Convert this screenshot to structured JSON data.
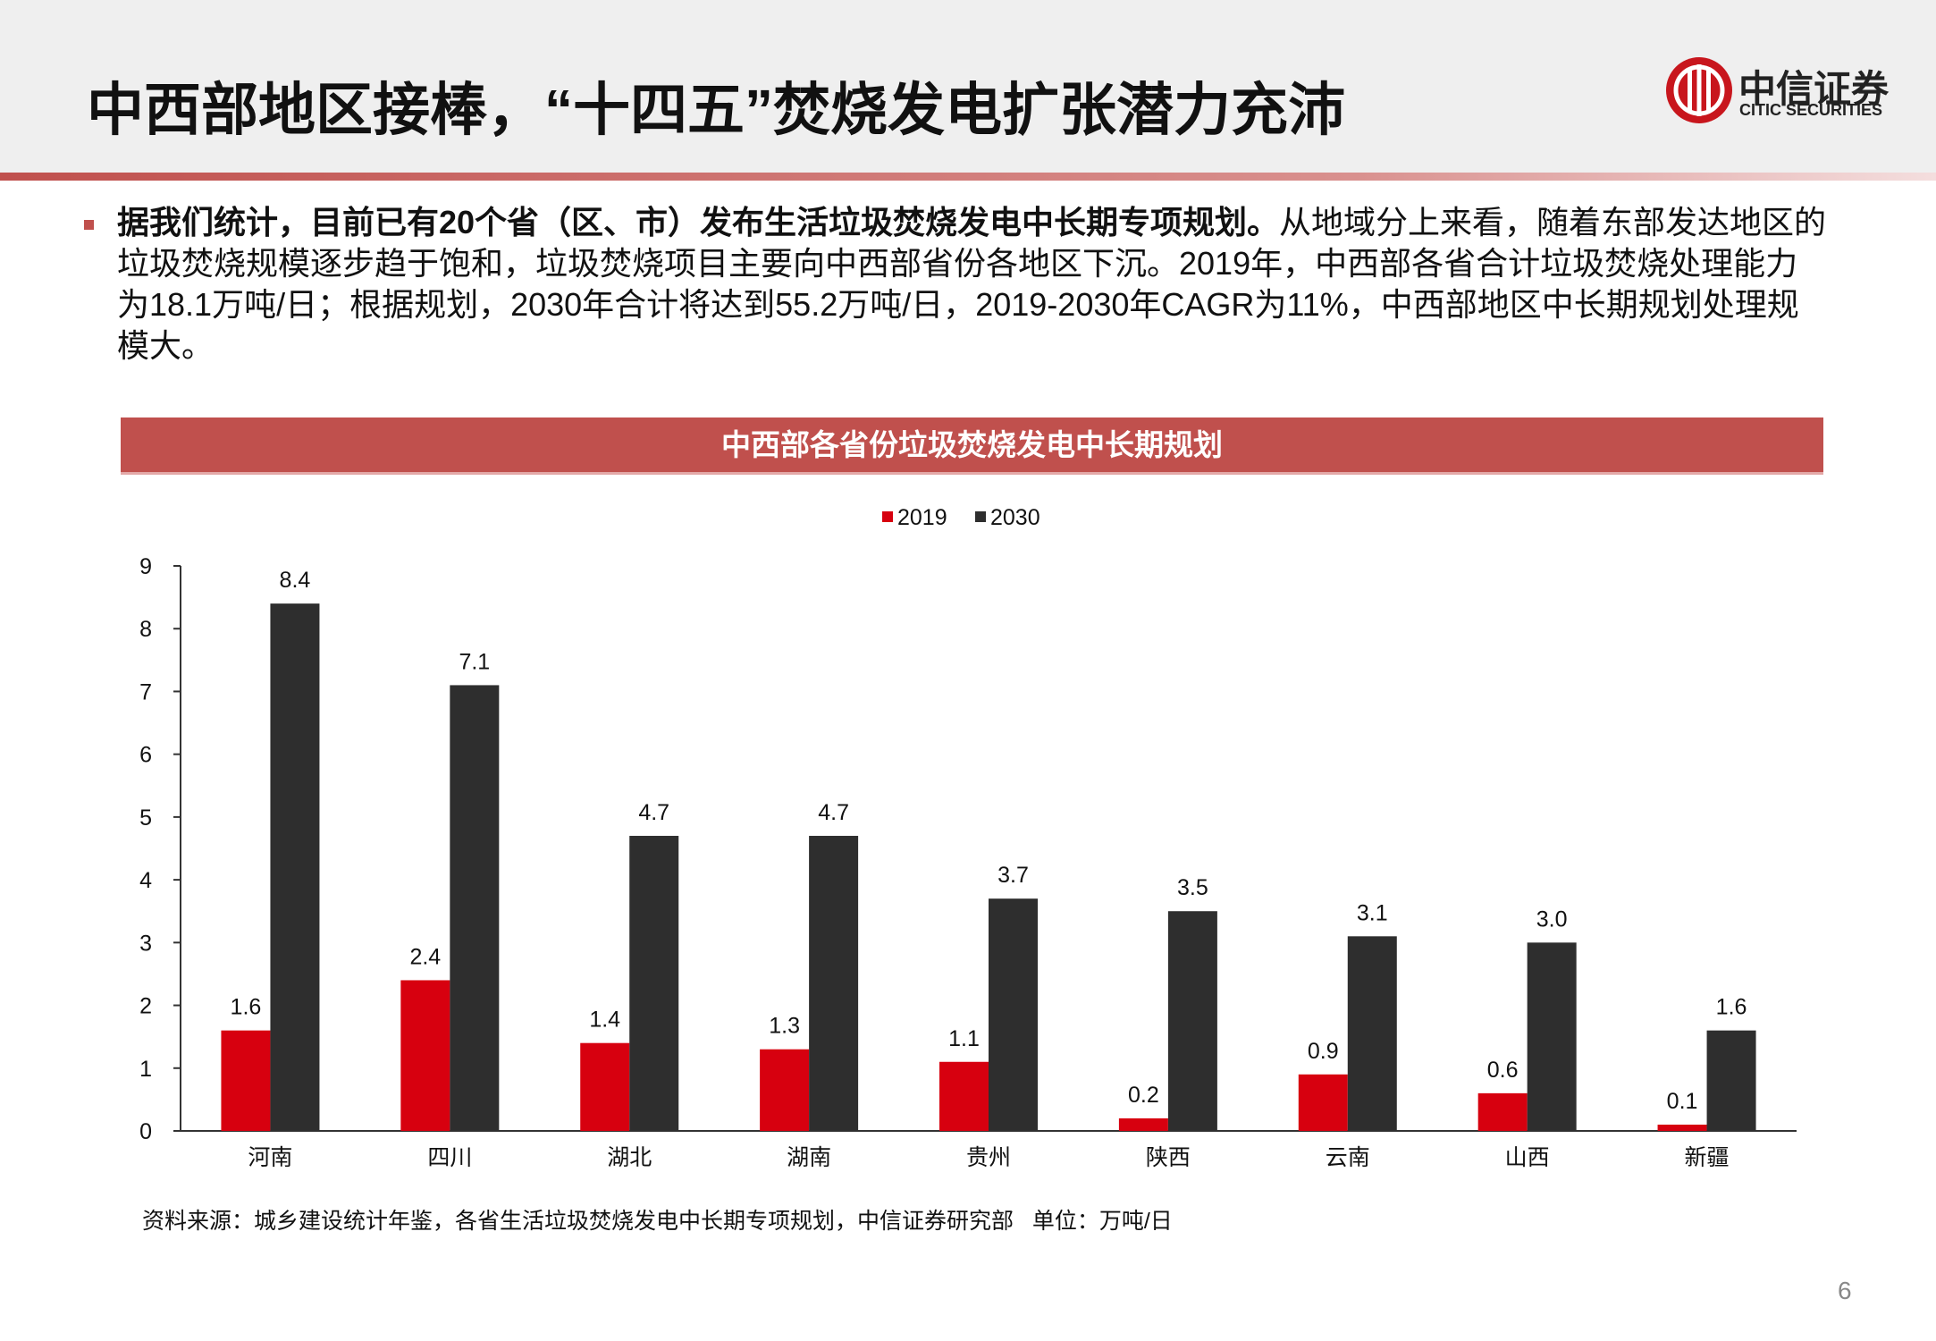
{
  "header": {
    "title": "中西部地区接棒，“十四五”焚烧发电扩张潜力充沛",
    "logo_cn": "中信证券",
    "logo_en": "CITIC SECURITIES"
  },
  "bullet": {
    "bold": "据我们统计，目前已有20个省（区、市）发布生活垃圾焚烧发电中长期专项规划。",
    "text": "从地域分上来看，随着东部发达地区的垃圾焚烧规模逐步趋于饱和，垃圾焚烧项目主要向中西部省份各地区下沉。2019年，中西部各省合计垃圾焚烧处理能力为18.1万吨/日；根据规划，2030年合计将达到55.2万吨/日，2019-2030年CAGR为11%，中西部地区中长期规划处理规模大。"
  },
  "chart_data": {
    "type": "bar",
    "title": "中西部各省份垃圾焚烧发电中长期规划",
    "categories": [
      "河南",
      "四川",
      "湖北",
      "湖南",
      "贵州",
      "陕西",
      "云南",
      "山西",
      "新疆"
    ],
    "series": [
      {
        "name": "2019",
        "color": "#d7000f",
        "values": [
          1.6,
          2.4,
          1.4,
          1.3,
          1.1,
          0.2,
          0.9,
          0.6,
          0.1
        ],
        "value_labels": [
          "1.6",
          "2.4",
          "1.4",
          "1.3",
          "1.1",
          "0.2",
          "0.9",
          "0.6",
          "0.1"
        ]
      },
      {
        "name": "2030",
        "color": "#2e2e2e",
        "values": [
          8.4,
          7.1,
          4.7,
          4.7,
          3.7,
          3.5,
          3.1,
          3.0,
          1.6
        ],
        "value_labels": [
          "8.4",
          "7.1",
          "4.7",
          "4.7",
          "3.7",
          "3.5",
          "3.1",
          "3.0",
          "1.6"
        ]
      }
    ],
    "ylim": [
      0,
      9
    ],
    "yticks": [
      0,
      1,
      2,
      3,
      4,
      5,
      6,
      7,
      8,
      9
    ],
    "grid": false,
    "legend": "top"
  },
  "source": "资料来源：城乡建设统计年鉴，各省生活垃圾焚烧发电中长期专项规划，中信证券研究部   单位：万吨/日",
  "page_number": "6"
}
